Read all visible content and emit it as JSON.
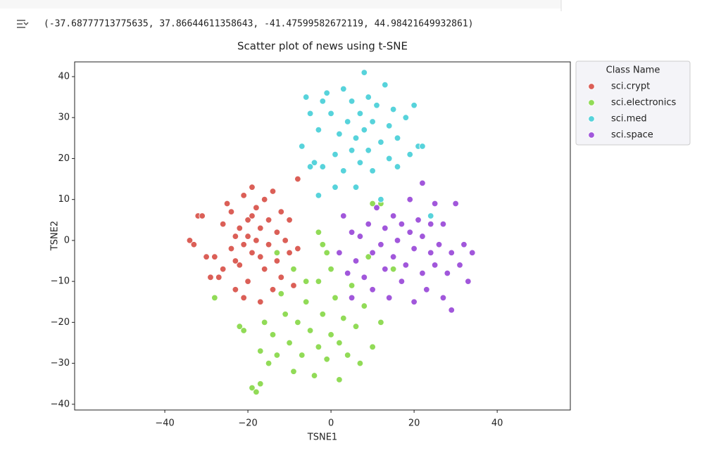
{
  "output_text": "(-37.68777713775635, 37.86644611358643, -41.47599582672119, 44.98421649932861)",
  "chart_data": {
    "type": "scatter",
    "title": "Scatter plot of news using t-SNE",
    "x_label": "TSNE1",
    "y_label": "TSNE2",
    "xlim": [
      -61.7,
      57.6
    ],
    "ylim": [
      -41.4,
      43.6
    ],
    "xticks": [
      {
        "value": -40,
        "label": "−40"
      },
      {
        "value": -20,
        "label": "−20"
      },
      0,
      20,
      40
    ],
    "yticks": [
      {
        "value": -40,
        "label": "−40"
      },
      {
        "value": -30,
        "label": "−30"
      },
      {
        "value": -20,
        "label": "−20"
      },
      {
        "value": -10,
        "label": "−10"
      },
      0,
      10,
      20,
      30,
      40
    ],
    "grid": false,
    "legend": "outside upper right",
    "legend_title": "Class Name",
    "series": [
      {
        "name": "sci.crypt",
        "color": "#db5f57",
        "x": [
          -34,
          -33,
          -32,
          -31,
          -30,
          -29,
          -28,
          -27,
          -26,
          -26,
          -25,
          -24,
          -24,
          -23,
          -23,
          -22,
          -22,
          -21,
          -21,
          -20,
          -20,
          -19,
          -19,
          -18,
          -18,
          -17,
          -17,
          -16,
          -16,
          -15,
          -15,
          -14,
          -14,
          -13,
          -13,
          -12,
          -12,
          -11,
          -10,
          -10,
          -9,
          -8,
          -8,
          -21,
          -19,
          -17,
          -23,
          -20
        ],
        "values": [
          0,
          -1,
          6,
          6,
          -4,
          -9,
          -4,
          -9,
          -7,
          4,
          9,
          -2,
          7,
          -12,
          1,
          3,
          -6,
          11,
          -14,
          -10,
          5,
          13,
          -3,
          0,
          8,
          -15,
          3,
          -7,
          10,
          -1,
          5,
          -12,
          12,
          -5,
          2,
          7,
          -9,
          0,
          5,
          -3,
          -11,
          15,
          -2,
          -1,
          6,
          -4,
          -5,
          1
        ]
      },
      {
        "name": "sci.electronics",
        "color": "#91db57",
        "x": [
          -28,
          -22,
          -21,
          -19,
          -18,
          -17,
          -17,
          -16,
          -15,
          -14,
          -13,
          -12,
          -11,
          -10,
          -9,
          -9,
          -8,
          -7,
          -6,
          -5,
          -4,
          -3,
          -3,
          -2,
          -1,
          0,
          0,
          1,
          2,
          2,
          3,
          4,
          5,
          6,
          7,
          8,
          9,
          10,
          12,
          -3,
          -2,
          -1,
          10,
          12,
          15,
          -13,
          -6
        ],
        "values": [
          -14,
          -21,
          -22,
          -36,
          -37,
          -35,
          -27,
          -20,
          -30,
          -23,
          -28,
          -13,
          -18,
          -25,
          -32,
          -7,
          -20,
          -28,
          -15,
          -22,
          -33,
          -10,
          -26,
          -18,
          -29,
          -23,
          -7,
          -14,
          -25,
          -34,
          -19,
          -28,
          -11,
          -21,
          -30,
          -16,
          -4,
          -26,
          -20,
          2,
          -1,
          -3,
          9,
          9,
          -7,
          -3,
          -10
        ]
      },
      {
        "name": "sci.med",
        "color": "#57d3db",
        "x": [
          -7,
          -6,
          -5,
          -4,
          -3,
          -2,
          -1,
          0,
          1,
          1,
          2,
          3,
          3,
          4,
          5,
          5,
          6,
          6,
          7,
          7,
          8,
          8,
          9,
          9,
          10,
          10,
          11,
          12,
          12,
          13,
          14,
          14,
          15,
          16,
          16,
          18,
          19,
          20,
          21,
          22,
          -5,
          -3,
          24,
          -2
        ],
        "values": [
          23,
          35,
          31,
          19,
          27,
          18,
          36,
          31,
          21,
          13,
          26,
          37,
          17,
          29,
          22,
          34,
          13,
          25,
          31,
          19,
          41,
          27,
          35,
          22,
          17,
          29,
          33,
          24,
          10,
          38,
          20,
          28,
          32,
          25,
          18,
          30,
          21,
          33,
          23,
          23,
          18,
          11,
          6,
          34
        ]
      },
      {
        "name": "sci.space",
        "color": "#a157db",
        "x": [
          2,
          3,
          4,
          5,
          6,
          7,
          8,
          9,
          10,
          10,
          11,
          12,
          13,
          13,
          14,
          15,
          15,
          16,
          17,
          17,
          18,
          19,
          19,
          20,
          20,
          21,
          22,
          22,
          23,
          24,
          24,
          25,
          25,
          26,
          27,
          27,
          28,
          29,
          29,
          30,
          31,
          32,
          33,
          34,
          22,
          5
        ],
        "values": [
          -3,
          6,
          -8,
          2,
          -5,
          1,
          -9,
          4,
          -3,
          -12,
          8,
          -1,
          -7,
          3,
          -14,
          -4,
          6,
          0,
          -10,
          4,
          -6,
          2,
          10,
          -15,
          -2,
          5,
          -8,
          1,
          -12,
          -3,
          4,
          9,
          -6,
          -1,
          -14,
          4,
          -8,
          -17,
          -3,
          9,
          -6,
          -1,
          -10,
          -3,
          14,
          -14
        ]
      }
    ]
  }
}
